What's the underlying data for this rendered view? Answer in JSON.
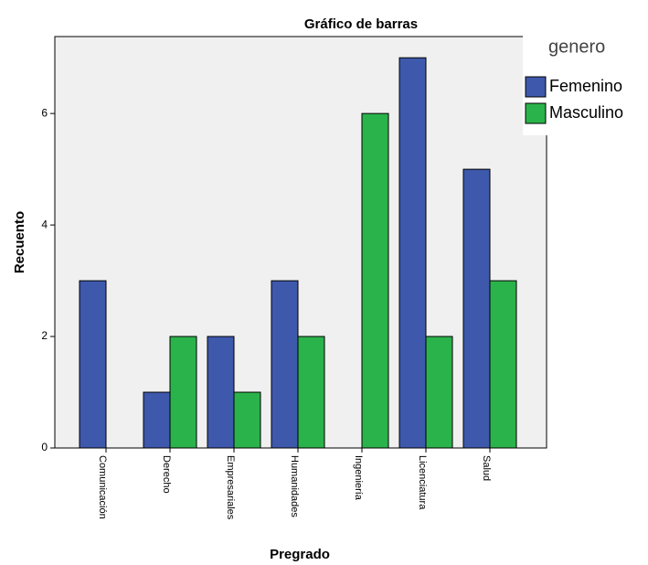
{
  "chart_data": {
    "type": "bar",
    "title": "Gráfico de barras",
    "x_label": "Pregrado",
    "y_label": "Recuento",
    "categories": [
      "Comunicación",
      "Derecho",
      "Empresariales",
      "Humanidades",
      "Ingeniería",
      "Licenciatura",
      "Salud"
    ],
    "legend_title": "genero",
    "legend_position": "upper right",
    "series": [
      {
        "name": "Femenino",
        "color": "#3e58ac",
        "values": [
          3,
          1,
          2,
          3,
          0,
          7,
          5
        ]
      },
      {
        "name": "Masculino",
        "color": "#2ab34a",
        "values": [
          0,
          2,
          1,
          2,
          6,
          2,
          3
        ]
      }
    ],
    "ylim": [
      0,
      7.38
    ],
    "yticks": [
      0,
      2,
      4,
      6
    ],
    "grid": false
  }
}
